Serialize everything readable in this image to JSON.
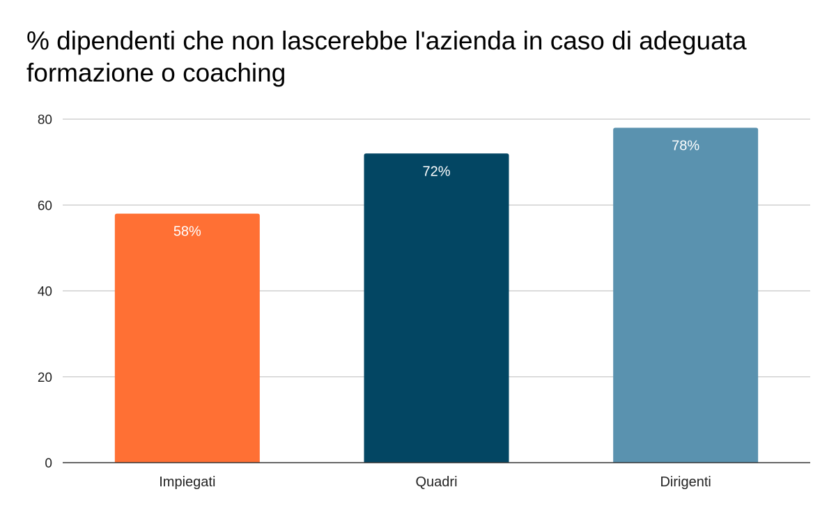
{
  "chart_data": {
    "type": "bar",
    "title": "% dipendenti che non lascerebbe l'azienda in caso di adeguata formazione o coaching",
    "categories": [
      "Impiegati",
      "Quadri",
      "Dirigenti"
    ],
    "values": [
      58,
      72,
      78
    ],
    "data_labels": [
      "58%",
      "72%",
      "78%"
    ],
    "bar_colors": [
      "#ff7034",
      "#034663",
      "#5a92af"
    ],
    "ylim": [
      0,
      80
    ],
    "yticks": [
      "0",
      "20",
      "40",
      "60",
      "80"
    ],
    "grid": true,
    "legend": "none"
  }
}
